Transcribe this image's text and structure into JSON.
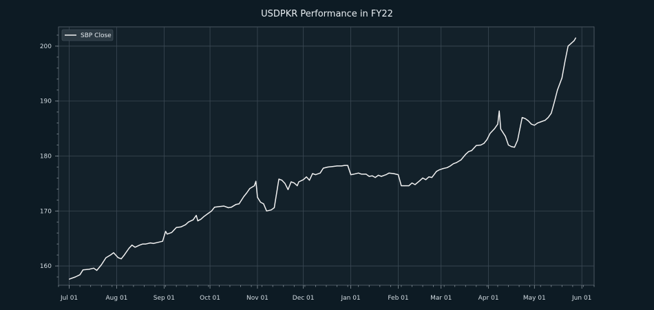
{
  "chart_data": {
    "type": "line",
    "title": "USDPKR Performance in FY22",
    "xlabel": "",
    "ylabel": "",
    "x_ticks": [
      "Jul 01",
      "Aug 01",
      "Sep 01",
      "Oct 01",
      "Nov 01",
      "Dec 01",
      "Jan 01",
      "Feb 01",
      "Mar 01",
      "Apr 01",
      "May 01",
      "Jun 01"
    ],
    "y_ticks": [
      160,
      170,
      180,
      190,
      200
    ],
    "xlim": [
      "2021-06-24",
      "2022-06-09"
    ],
    "ylim": [
      156.5,
      203.5
    ],
    "grid": true,
    "legend_position": "top-left",
    "series": [
      {
        "name": "SBP Close",
        "color": "#f2f2f2",
        "points": [
          [
            "2021-07-01",
            157.6
          ],
          [
            "2021-07-05",
            158.0
          ],
          [
            "2021-07-08",
            158.4
          ],
          [
            "2021-07-10",
            159.3
          ],
          [
            "2021-07-14",
            159.4
          ],
          [
            "2021-07-17",
            159.6
          ],
          [
            "2021-07-19",
            159.2
          ],
          [
            "2021-07-22",
            160.2
          ],
          [
            "2021-07-25",
            161.5
          ],
          [
            "2021-07-28",
            162.0
          ],
          [
            "2021-07-30",
            162.4
          ],
          [
            "2021-08-02",
            161.5
          ],
          [
            "2021-08-04",
            161.3
          ],
          [
            "2021-08-06",
            162.0
          ],
          [
            "2021-08-09",
            163.2
          ],
          [
            "2021-08-11",
            163.8
          ],
          [
            "2021-08-13",
            163.4
          ],
          [
            "2021-08-16",
            163.8
          ],
          [
            "2021-08-18",
            164.0
          ],
          [
            "2021-08-20",
            164.0
          ],
          [
            "2021-08-23",
            164.2
          ],
          [
            "2021-08-25",
            164.1
          ],
          [
            "2021-08-28",
            164.3
          ],
          [
            "2021-08-31",
            164.5
          ],
          [
            "2021-09-02",
            166.3
          ],
          [
            "2021-09-03",
            165.8
          ],
          [
            "2021-09-06",
            166.1
          ],
          [
            "2021-09-09",
            167.0
          ],
          [
            "2021-09-12",
            167.1
          ],
          [
            "2021-09-15",
            167.5
          ],
          [
            "2021-09-17",
            168.0
          ],
          [
            "2021-09-20",
            168.4
          ],
          [
            "2021-09-22",
            169.2
          ],
          [
            "2021-09-23",
            168.2
          ],
          [
            "2021-09-25",
            168.5
          ],
          [
            "2021-09-27",
            169.0
          ],
          [
            "2021-09-30",
            169.6
          ],
          [
            "2021-10-02",
            170.0
          ],
          [
            "2021-10-04",
            170.7
          ],
          [
            "2021-10-07",
            170.8
          ],
          [
            "2021-10-10",
            170.9
          ],
          [
            "2021-10-13",
            170.6
          ],
          [
            "2021-10-15",
            170.7
          ],
          [
            "2021-10-18",
            171.2
          ],
          [
            "2021-10-20",
            171.3
          ],
          [
            "2021-10-23",
            172.6
          ],
          [
            "2021-10-25",
            173.3
          ],
          [
            "2021-10-27",
            174.1
          ],
          [
            "2021-10-30",
            174.6
          ],
          [
            "2021-10-31",
            175.4
          ],
          [
            "2021-11-01",
            172.5
          ],
          [
            "2021-11-03",
            171.6
          ],
          [
            "2021-11-05",
            171.3
          ],
          [
            "2021-11-07",
            170.0
          ],
          [
            "2021-11-10",
            170.2
          ],
          [
            "2021-11-12",
            170.6
          ],
          [
            "2021-11-15",
            175.8
          ],
          [
            "2021-11-17",
            175.6
          ],
          [
            "2021-11-19",
            175.0
          ],
          [
            "2021-11-21",
            173.9
          ],
          [
            "2021-11-23",
            175.3
          ],
          [
            "2021-11-25",
            175.1
          ],
          [
            "2021-11-27",
            174.6
          ],
          [
            "2021-11-28",
            175.3
          ],
          [
            "2021-12-01",
            175.7
          ],
          [
            "2021-12-03",
            176.2
          ],
          [
            "2021-12-05",
            175.6
          ],
          [
            "2021-12-07",
            176.8
          ],
          [
            "2021-12-09",
            176.6
          ],
          [
            "2021-12-12",
            176.9
          ],
          [
            "2021-12-14",
            177.8
          ],
          [
            "2021-12-17",
            178.0
          ],
          [
            "2021-12-20",
            178.1
          ],
          [
            "2021-12-23",
            178.2
          ],
          [
            "2021-12-26",
            178.2
          ],
          [
            "2021-12-28",
            178.3
          ],
          [
            "2021-12-30",
            178.3
          ],
          [
            "2022-01-01",
            176.6
          ],
          [
            "2022-01-03",
            176.7
          ],
          [
            "2022-01-06",
            176.9
          ],
          [
            "2022-01-08",
            176.7
          ],
          [
            "2022-01-11",
            176.7
          ],
          [
            "2022-01-13",
            176.3
          ],
          [
            "2022-01-15",
            176.4
          ],
          [
            "2022-01-17",
            176.1
          ],
          [
            "2022-01-19",
            176.5
          ],
          [
            "2022-01-21",
            176.3
          ],
          [
            "2022-01-24",
            176.6
          ],
          [
            "2022-01-26",
            176.9
          ],
          [
            "2022-01-29",
            176.8
          ],
          [
            "2022-02-01",
            176.6
          ],
          [
            "2022-02-03",
            174.6
          ],
          [
            "2022-02-05",
            174.6
          ],
          [
            "2022-02-08",
            174.6
          ],
          [
            "2022-02-10",
            175.1
          ],
          [
            "2022-02-12",
            174.8
          ],
          [
            "2022-02-15",
            175.5
          ],
          [
            "2022-02-17",
            176.0
          ],
          [
            "2022-02-19",
            175.7
          ],
          [
            "2022-02-21",
            176.2
          ],
          [
            "2022-02-23",
            176.1
          ],
          [
            "2022-02-26",
            177.2
          ],
          [
            "2022-02-28",
            177.5
          ],
          [
            "2022-03-02",
            177.7
          ],
          [
            "2022-03-05",
            177.9
          ],
          [
            "2022-03-07",
            178.2
          ],
          [
            "2022-03-09",
            178.6
          ],
          [
            "2022-03-11",
            178.8
          ],
          [
            "2022-03-14",
            179.3
          ],
          [
            "2022-03-17",
            180.3
          ],
          [
            "2022-03-19",
            180.8
          ],
          [
            "2022-03-21",
            181.0
          ],
          [
            "2022-03-24",
            181.9
          ],
          [
            "2022-03-27",
            182.0
          ],
          [
            "2022-03-29",
            182.3
          ],
          [
            "2022-03-31",
            183.0
          ],
          [
            "2022-04-02",
            184.1
          ],
          [
            "2022-04-05",
            185.0
          ],
          [
            "2022-04-07",
            185.8
          ],
          [
            "2022-04-08",
            188.2
          ],
          [
            "2022-04-09",
            184.9
          ],
          [
            "2022-04-12",
            183.6
          ],
          [
            "2022-04-14",
            182.0
          ],
          [
            "2022-04-16",
            181.7
          ],
          [
            "2022-04-18",
            181.6
          ],
          [
            "2022-04-20",
            182.9
          ],
          [
            "2022-04-23",
            187.0
          ],
          [
            "2022-04-25",
            186.8
          ],
          [
            "2022-04-27",
            186.4
          ],
          [
            "2022-04-29",
            185.8
          ],
          [
            "2022-05-01",
            185.6
          ],
          [
            "2022-05-03",
            186.0
          ],
          [
            "2022-05-05",
            186.2
          ],
          [
            "2022-05-08",
            186.5
          ],
          [
            "2022-05-10",
            187.0
          ],
          [
            "2022-05-12",
            187.8
          ],
          [
            "2022-05-14",
            189.8
          ],
          [
            "2022-05-16",
            192.0
          ],
          [
            "2022-05-19",
            194.2
          ],
          [
            "2022-05-21",
            197.3
          ],
          [
            "2022-05-23",
            200.0
          ],
          [
            "2022-05-25",
            200.5
          ],
          [
            "2022-05-27",
            201.0
          ],
          [
            "2022-05-28",
            201.5
          ]
        ]
      }
    ]
  }
}
